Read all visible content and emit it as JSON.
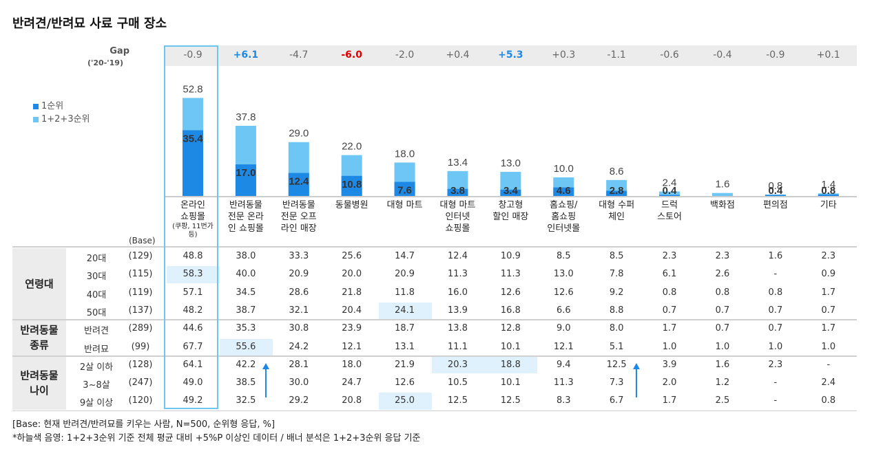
{
  "title": "반려견/반려묘 사료 구매 장소",
  "gap_label": "Gap",
  "gap_sub": "('20-'19)",
  "base_header": "(Base)",
  "colors": {
    "rank1": "#1e88e5",
    "rank123": "#6ec6f5",
    "highlight": "#dff1fc",
    "positive": "#1e88e5",
    "negative": "#e00000"
  },
  "chart_data": {
    "type": "bar",
    "title": "반려견/반려묘 사료 구매 장소",
    "categories": [
      "온라인 쇼핑몰",
      "반려동물 전문 온라인 쇼핑몰",
      "반려동물 전문 오프라인 매장",
      "동물병원",
      "대형 마트",
      "대형 마트 인터넷 쇼핑몰",
      "창고형 할인 매장",
      "홈쇼핑/홈쇼핑 인터넷몰",
      "대형 수퍼 체인",
      "드럭 스토어",
      "백화점",
      "편의점",
      "기타"
    ],
    "category_lines": [
      [
        "온라인",
        "쇼핑몰"
      ],
      [
        "반려동물",
        "전문 온라",
        "인 쇼핑몰"
      ],
      [
        "반려동물",
        "전문 오프",
        "라인 매장"
      ],
      [
        "동물병원"
      ],
      [
        "대형 마트"
      ],
      [
        "대형 마트",
        "인터넷",
        "쇼핑몰"
      ],
      [
        "창고형",
        "할인 매장"
      ],
      [
        "홈쇼핑/",
        "홈쇼핑",
        "인터넷몰"
      ],
      [
        "대형 수퍼",
        "체인"
      ],
      [
        "드럭",
        "스토어"
      ],
      [
        "백화점"
      ],
      [
        "편의점"
      ],
      [
        "기타"
      ]
    ],
    "category_note": [
      "(쿠팡, 11번가",
      "등)"
    ],
    "series": [
      {
        "name": "1순위",
        "values": [
          35.4,
          17.0,
          12.4,
          10.8,
          7.6,
          3.8,
          3.4,
          4.6,
          2.8,
          0.4,
          null,
          0.4,
          0.8
        ]
      },
      {
        "name": "1+2+3순위",
        "values": [
          52.8,
          37.8,
          29.0,
          22.0,
          18.0,
          13.4,
          13.0,
          10.0,
          8.6,
          2.4,
          1.6,
          0.8,
          1.4
        ]
      }
    ],
    "gap": [
      "-0.9",
      "+6.1",
      "-4.7",
      "-6.0",
      "-2.0",
      "+0.4",
      "+5.3",
      "+0.3",
      "-1.1",
      "-0.6",
      "-0.4",
      "-0.9",
      "+0.1"
    ],
    "gap_style": [
      "",
      "pos",
      "",
      "neg",
      "",
      "",
      "pos",
      "",
      "",
      "",
      "",
      "",
      ""
    ],
    "ylim": [
      0,
      60
    ],
    "legend": "left"
  },
  "table": {
    "groups": [
      {
        "label": "연령대",
        "lines": [
          "연령대"
        ],
        "rows": [
          0,
          1,
          2,
          3
        ]
      },
      {
        "label": "반려동물 종류",
        "lines": [
          "반려동물",
          "종류"
        ],
        "rows": [
          4,
          5
        ]
      },
      {
        "label": "반려동물 나이",
        "lines": [
          "반려동물",
          "나이"
        ],
        "rows": [
          6,
          7,
          8
        ]
      }
    ],
    "rows": [
      {
        "label": "20대",
        "base": "(129)",
        "values": [
          "48.8",
          "38.0",
          "33.3",
          "25.6",
          "14.7",
          "12.4",
          "10.9",
          "8.5",
          "8.5",
          "2.3",
          "2.3",
          "1.6",
          "2.3"
        ]
      },
      {
        "label": "30대",
        "base": "(115)",
        "values": [
          "58.3",
          "40.0",
          "20.9",
          "20.0",
          "20.9",
          "11.3",
          "11.3",
          "13.0",
          "7.8",
          "6.1",
          "2.6",
          "-",
          "0.9"
        ]
      },
      {
        "label": "40대",
        "base": "(119)",
        "values": [
          "57.1",
          "34.5",
          "28.6",
          "21.8",
          "11.8",
          "16.0",
          "12.6",
          "12.6",
          "9.2",
          "0.8",
          "0.8",
          "0.8",
          "1.7"
        ]
      },
      {
        "label": "50대",
        "base": "(137)",
        "values": [
          "48.2",
          "38.7",
          "32.1",
          "20.4",
          "24.1",
          "13.9",
          "16.8",
          "6.6",
          "8.8",
          "0.7",
          "0.7",
          "0.7",
          "0.7"
        ]
      },
      {
        "label": "반려견",
        "base": "(289)",
        "values": [
          "44.6",
          "35.3",
          "30.8",
          "23.9",
          "18.7",
          "13.8",
          "12.8",
          "9.0",
          "8.0",
          "1.7",
          "0.7",
          "0.7",
          "1.7"
        ]
      },
      {
        "label": "반려묘",
        "base": "(99)",
        "values": [
          "67.7",
          "55.6",
          "24.2",
          "12.1",
          "13.1",
          "11.1",
          "10.1",
          "12.1",
          "5.1",
          "1.0",
          "1.0",
          "1.0",
          "1.0"
        ]
      },
      {
        "label": "2살 이하",
        "base": "(128)",
        "values": [
          "64.1",
          "42.2",
          "28.1",
          "18.0",
          "21.9",
          "20.3",
          "18.8",
          "9.4",
          "12.5",
          "3.9",
          "1.6",
          "2.3",
          "-"
        ]
      },
      {
        "label": "3~8살",
        "base": "(247)",
        "values": [
          "49.0",
          "38.5",
          "30.0",
          "24.7",
          "12.6",
          "10.5",
          "10.1",
          "11.3",
          "7.3",
          "2.0",
          "1.2",
          "-",
          "2.4"
        ]
      },
      {
        "label": "9살 이상",
        "base": "(120)",
        "values": [
          "49.2",
          "32.5",
          "29.2",
          "20.8",
          "25.0",
          "12.5",
          "12.5",
          "8.3",
          "6.7",
          "1.7",
          "2.5",
          "-",
          "0.8"
        ]
      }
    ],
    "highlights": [
      [
        1,
        0
      ],
      [
        3,
        4
      ],
      [
        5,
        1
      ],
      [
        6,
        5
      ],
      [
        6,
        6
      ],
      [
        8,
        4
      ]
    ],
    "arrows": [
      [
        6,
        1
      ],
      [
        6,
        8
      ]
    ]
  },
  "footnotes": [
    "[Base: 현재 반려견/반려묘를 키우는 사람, N=500, 순위형 응답, %]",
    "*하늘색 음영: 1+2+3순위 기준 전체 평균 대비 +5%P 이상인 데이터 / 배너 분석은 1+2+3순위 응답 기준"
  ]
}
